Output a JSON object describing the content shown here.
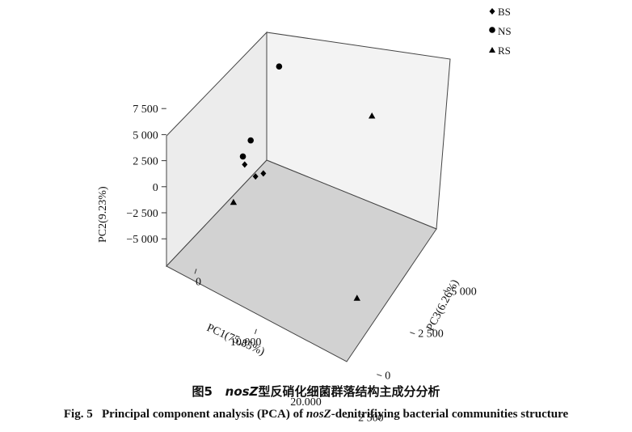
{
  "chart_data": {
    "type": "scatter",
    "projection": "3d",
    "axes": {
      "x": {
        "label": "PC1(75.85%)",
        "ticks": [
          0,
          10000,
          20000
        ],
        "tick_labels": [
          "0",
          "10.000",
          "20.000"
        ]
      },
      "y": {
        "label": "PC2(9.23%)",
        "ticks": [
          -5000,
          -2500,
          0,
          2500,
          5000,
          7500
        ],
        "tick_labels": [
          "−5 000",
          "−2 500",
          "0",
          "2 500",
          "5 000",
          "7 500"
        ]
      },
      "z": {
        "label": "PC3(6.26%)",
        "ticks": [
          -2500,
          0,
          2500,
          5000
        ],
        "tick_labels": [
          "−2 500",
          "0",
          "2 500",
          "5 000"
        ]
      }
    },
    "legend_position": "top-right",
    "series": [
      {
        "name": "BS",
        "marker": "diamond",
        "points": [
          {
            "x": 1200,
            "y": 700,
            "z": 600
          },
          {
            "x": 3200,
            "y": 200,
            "z": 1100
          },
          {
            "x": 3000,
            "y": 600,
            "z": 600
          }
        ]
      },
      {
        "name": "NS",
        "marker": "circle",
        "points": [
          {
            "x": 900,
            "y": 1300,
            "z": 600
          },
          {
            "x": 2200,
            "y": 3600,
            "z": 600
          },
          {
            "x": 3400,
            "y": 8800,
            "z": 2200
          }
        ]
      },
      {
        "name": "RS",
        "marker": "triangle",
        "points": [
          {
            "x": 1100,
            "y": -1700,
            "z": -200
          },
          {
            "x": 12000,
            "y": 4000,
            "z": 5300
          },
          {
            "x": 19000,
            "y": -2500,
            "z": 1000
          }
        ]
      }
    ]
  },
  "caption": {
    "cn_prefix": "图5",
    "cn_italic": "nosZ",
    "cn_rest": "型反硝化细菌群落结构主成分分析",
    "en_prefix": "Fig. 5   Principal component analysis (PCA) of ",
    "en_italic": "nosZ",
    "en_rest": "-denitrifiying bacterial communities structure"
  }
}
